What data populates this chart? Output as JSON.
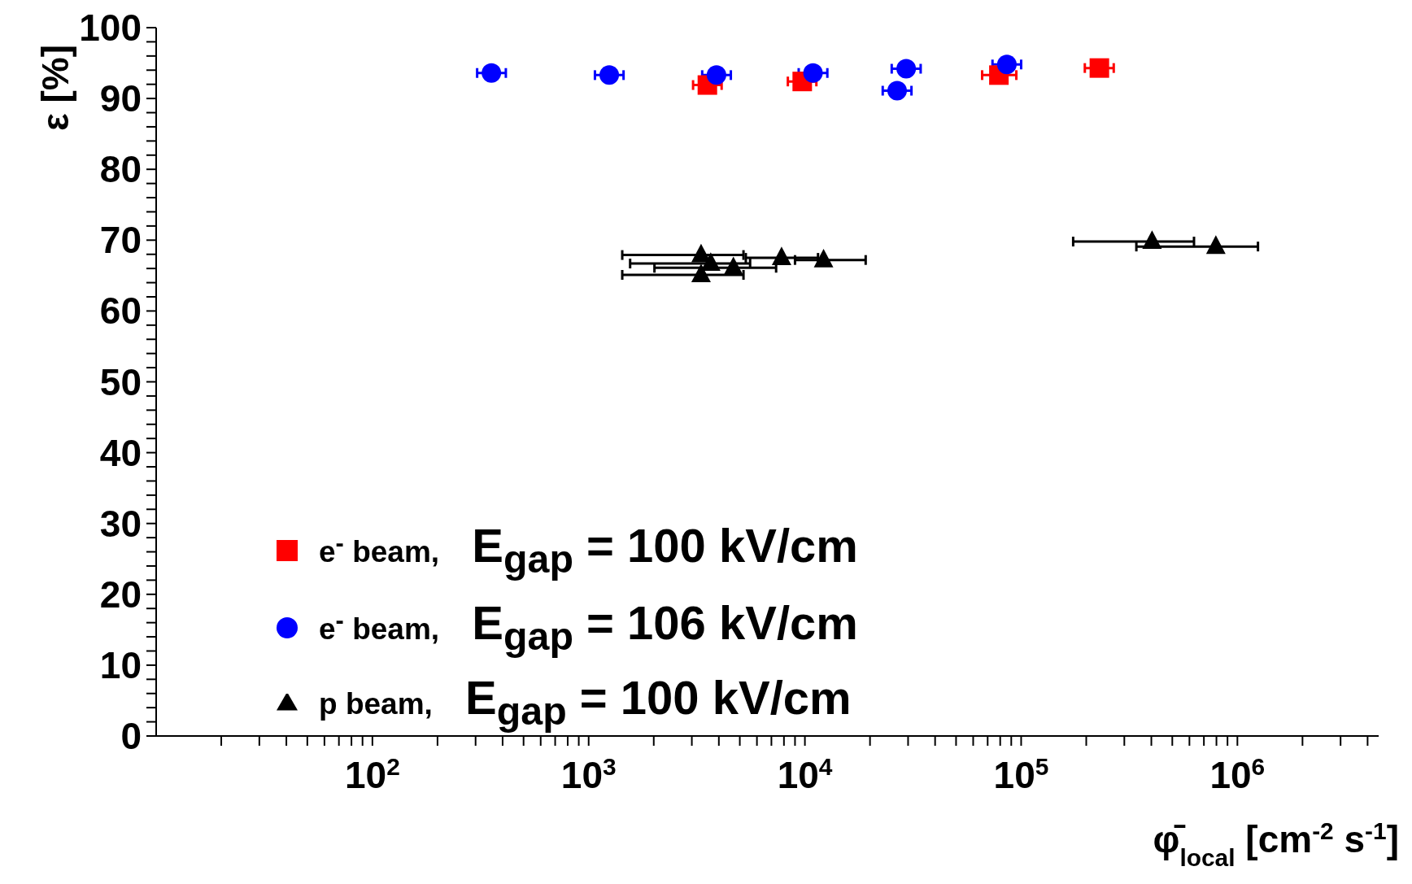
{
  "chart_data": {
    "type": "scatter",
    "xlabel": "φ̄$_{local}$ [cm$^{-2}$ s$^{-1}$]",
    "ylabel": "ε [%]",
    "log": "x",
    "legend": "bottom left",
    "xlim": [
      10,
      4500000
    ],
    "ylim": [
      0,
      100
    ],
    "xticks": [
      {
        "value": 20,
        "label": null
      },
      {
        "value": 30,
        "label": null
      },
      {
        "value": 40,
        "label": null
      },
      {
        "value": 50,
        "label": null
      },
      {
        "value": 60,
        "label": null
      },
      {
        "value": 70,
        "label": null
      },
      {
        "value": 80,
        "label": null
      },
      {
        "value": 90,
        "label": null
      },
      {
        "value": 100,
        "label": "10$^{2}$"
      },
      {
        "value": 200,
        "label": null
      },
      {
        "value": 300,
        "label": null
      },
      {
        "value": 400,
        "label": null
      },
      {
        "value": 500,
        "label": null
      },
      {
        "value": 600,
        "label": null
      },
      {
        "value": 700,
        "label": null
      },
      {
        "value": 800,
        "label": null
      },
      {
        "value": 900,
        "label": null
      },
      {
        "value": 1000,
        "label": "10$^{3}$"
      },
      {
        "value": 2000,
        "label": null
      },
      {
        "value": 3000,
        "label": null
      },
      {
        "value": 4000,
        "label": null
      },
      {
        "value": 5000,
        "label": null
      },
      {
        "value": 6000,
        "label": null
      },
      {
        "value": 7000,
        "label": null
      },
      {
        "value": 8000,
        "label": null
      },
      {
        "value": 9000,
        "label": null
      },
      {
        "value": 10000,
        "label": "10$^{4}$"
      },
      {
        "value": 20000,
        "label": null
      },
      {
        "value": 30000,
        "label": null
      },
      {
        "value": 40000,
        "label": null
      },
      {
        "value": 50000,
        "label": null
      },
      {
        "value": 60000,
        "label": null
      },
      {
        "value": 70000,
        "label": null
      },
      {
        "value": 80000,
        "label": null
      },
      {
        "value": 90000,
        "label": null
      },
      {
        "value": 100000,
        "label": "10$^{5}$"
      },
      {
        "value": 200000,
        "label": null
      },
      {
        "value": 300000,
        "label": null
      },
      {
        "value": 400000,
        "label": null
      },
      {
        "value": 500000,
        "label": null
      },
      {
        "value": 600000,
        "label": null
      },
      {
        "value": 700000,
        "label": null
      },
      {
        "value": 800000,
        "label": null
      },
      {
        "value": 900000,
        "label": null
      },
      {
        "value": 1000000,
        "label": "10$^{6}$"
      },
      {
        "value": 2000000,
        "label": null
      },
      {
        "value": 3000000,
        "label": null
      },
      {
        "value": 4000000,
        "label": null
      }
    ],
    "yticks": [
      0,
      {
        "value": 2,
        "label": null
      },
      {
        "value": 4,
        "label": null
      },
      {
        "value": 6,
        "label": null
      },
      {
        "value": 8,
        "label": null
      },
      10,
      {
        "value": 12,
        "label": null
      },
      {
        "value": 14,
        "label": null
      },
      {
        "value": 16,
        "label": null
      },
      {
        "value": 18,
        "label": null
      },
      20,
      {
        "value": 22,
        "label": null
      },
      {
        "value": 24,
        "label": null
      },
      {
        "value": 26,
        "label": null
      },
      {
        "value": 28,
        "label": null
      },
      30,
      {
        "value": 32,
        "label": null
      },
      {
        "value": 34,
        "label": null
      },
      {
        "value": 36,
        "label": null
      },
      {
        "value": 38,
        "label": null
      },
      40,
      {
        "value": 42,
        "label": null
      },
      {
        "value": 44,
        "label": null
      },
      {
        "value": 46,
        "label": null
      },
      {
        "value": 48,
        "label": null
      },
      50,
      {
        "value": 52,
        "label": null
      },
      {
        "value": 54,
        "label": null
      },
      {
        "value": 56,
        "label": null
      },
      {
        "value": 58,
        "label": null
      },
      60,
      {
        "value": 62,
        "label": null
      },
      {
        "value": 64,
        "label": null
      },
      {
        "value": 66,
        "label": null
      },
      {
        "value": 68,
        "label": null
      },
      70,
      {
        "value": 72,
        "label": null
      },
      {
        "value": 74,
        "label": null
      },
      {
        "value": 76,
        "label": null
      },
      {
        "value": 78,
        "label": null
      },
      80,
      {
        "value": 82,
        "label": null
      },
      {
        "value": 84,
        "label": null
      },
      {
        "value": 86,
        "label": null
      },
      {
        "value": 88,
        "label": null
      },
      90,
      {
        "value": 92,
        "label": null
      },
      {
        "value": 94,
        "label": null
      },
      {
        "value": 96,
        "label": null
      },
      {
        "value": 98,
        "label": null
      },
      100
    ],
    "series": [
      {
        "name": "e$^{-}$ beam, E$_{gap}$ = 100 kV/cm",
        "marker": "square",
        "color": "#ff0000",
        "x": [
          3540,
          9720,
          78900,
          230000
        ],
        "values": [
          91.9,
          92.4,
          93.3,
          94.3
        ],
        "xerrors": [
          [
            3040,
            4120
          ],
          [
            8340,
            11300
          ],
          [
            66000,
            95000
          ],
          [
            197000,
            268000
          ]
        ]
      },
      {
        "name": "e$^{-}$ beam, E$_{gap}$ = 106 kV/cm",
        "marker": "circle",
        "color": "#0000ff",
        "x": [
          355,
          1245,
          3900,
          10900,
          26700,
          29400,
          85900
        ],
        "values": [
          93.6,
          93.3,
          93.3,
          93.6,
          91.1,
          94.2,
          94.8
        ],
        "xerrors": [
          [
            305,
            414
          ],
          [
            1069,
            1450
          ],
          [
            3350,
            4545
          ],
          [
            9360,
            12700
          ],
          [
            22900,
            31100
          ],
          [
            25200,
            34300
          ],
          [
            73700,
            100000
          ]
        ]
      },
      {
        "name": "p beam, E$_{gap}$ = 100 kV/cm",
        "marker": "triangle",
        "color": "#000000",
        "x": [
          3310,
          3310,
          3670,
          4670,
          7800,
          12200,
          403000,
          795000
        ],
        "values": [
          67.9,
          65.1,
          66.7,
          66.1,
          67.5,
          67.2,
          69.8,
          69.1
        ],
        "xerrors": [
          [
            1430,
            5200
          ],
          [
            1430,
            5200
          ],
          [
            1555,
            5580
          ],
          [
            2015,
            7360
          ],
          [
            5330,
            11500
          ],
          [
            9000,
            19100
          ],
          [
            174000,
            630000
          ],
          [
            341000,
            1245000
          ]
        ]
      }
    ]
  }
}
